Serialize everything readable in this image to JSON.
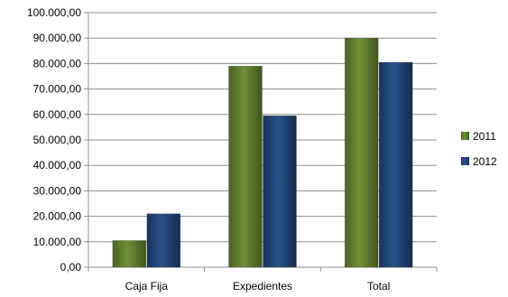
{
  "chart_data": {
    "type": "bar",
    "categories": [
      "Caja Fija",
      "Expedientes",
      "Total"
    ],
    "series": [
      {
        "name": "2011",
        "values": [
          10500,
          79000,
          90000
        ],
        "color": "#5d7a2e"
      },
      {
        "name": "2012",
        "values": [
          21000,
          59500,
          80500
        ],
        "color": "#1f3f6e"
      }
    ],
    "ylim": [
      0,
      100000
    ],
    "yticks": [
      0,
      10000,
      20000,
      30000,
      40000,
      50000,
      60000,
      70000,
      80000,
      90000,
      100000
    ],
    "ytick_labels": [
      "0,00",
      "10.000,00",
      "20.000,00",
      "30.000,00",
      "40.000,00",
      "50.000,00",
      "60.000,00",
      "70.000,00",
      "80.000,00",
      "90.000,00",
      "100.000,00"
    ],
    "grid": true,
    "legend_position": "right"
  }
}
